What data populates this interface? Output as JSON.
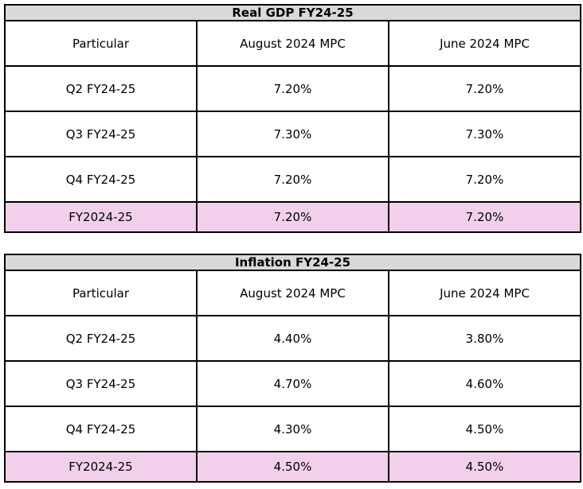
{
  "tables": [
    {
      "title": "Real GDP FY24-25",
      "headers": [
        "Particular",
        "August 2024 MPC",
        "June 2024 MPC"
      ],
      "rows": [
        [
          "Q2 FY24-25",
          "7.20%",
          "7.20%"
        ],
        [
          "Q3 FY24-25",
          "7.30%",
          "7.30%"
        ],
        [
          "Q4 FY24-25",
          "7.20%",
          "7.20%"
        ],
        [
          "FY2024-25",
          "7.20%",
          "7.20%"
        ]
      ]
    },
    {
      "title": "Inflation FY24-25",
      "headers": [
        "Particular",
        "August 2024 MPC",
        "June 2024 MPC"
      ],
      "rows": [
        [
          "Q2 FY24-25",
          "4.40%",
          "3.80%"
        ],
        [
          "Q3 FY24-25",
          "4.70%",
          "4.60%"
        ],
        [
          "Q4 FY24-25",
          "4.30%",
          "4.50%"
        ],
        [
          "FY2024-25",
          "4.50%",
          "4.50%"
        ]
      ]
    }
  ],
  "colors": {
    "title_bg": "#d9d9d9",
    "total_row_bg": "#f2d0ec",
    "border": "#000000"
  }
}
